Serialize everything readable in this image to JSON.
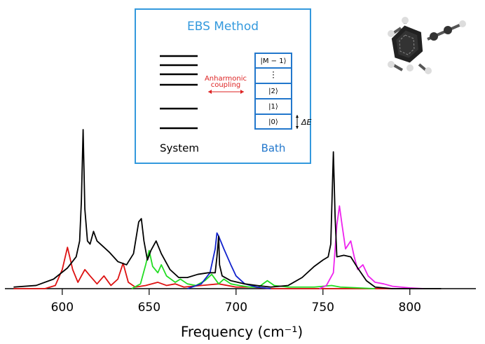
{
  "chart_data": {
    "type": "line",
    "xlabel": "Frequency (cm⁻¹)",
    "xlim": [
      567,
      838
    ],
    "ylim": [
      0,
      1.05
    ],
    "xticks": [
      600,
      650,
      700,
      750,
      800
    ],
    "series": [
      {
        "color": "#000000",
        "x": [
          572,
          585,
          595,
          603,
          608,
          610,
          611,
          612,
          613,
          614.5,
          616,
          618,
          620,
          623,
          627,
          632,
          637,
          641,
          644,
          645.5,
          647,
          649,
          651,
          654,
          657,
          662,
          667,
          672,
          678,
          684,
          688,
          689,
          690,
          690.5,
          692,
          697,
          705,
          712,
          720,
          730,
          738,
          745,
          750,
          753,
          754.5,
          756,
          757,
          758,
          762,
          766,
          770,
          775,
          780,
          790,
          818
        ],
        "values": [
          0.01,
          0.02,
          0.06,
          0.13,
          0.2,
          0.3,
          0.55,
          1.0,
          0.5,
          0.3,
          0.28,
          0.36,
          0.3,
          0.27,
          0.23,
          0.17,
          0.15,
          0.22,
          0.42,
          0.44,
          0.3,
          0.18,
          0.24,
          0.3,
          0.22,
          0.12,
          0.07,
          0.07,
          0.09,
          0.1,
          0.1,
          0.2,
          0.33,
          0.15,
          0.08,
          0.05,
          0.03,
          0.02,
          0.01,
          0.02,
          0.07,
          0.14,
          0.18,
          0.2,
          0.28,
          0.86,
          0.45,
          0.2,
          0.21,
          0.2,
          0.13,
          0.05,
          0.01,
          0,
          0
        ]
      },
      {
        "color": "#dd1111",
        "x": [
          572,
          590,
          596,
          600,
          603,
          606,
          609,
          613,
          616,
          620,
          624,
          628,
          632,
          635,
          638,
          642,
          648,
          655,
          660,
          665,
          670,
          680,
          690,
          700,
          710,
          720,
          790
        ],
        "values": [
          0,
          0,
          0.02,
          0.12,
          0.26,
          0.12,
          0.04,
          0.12,
          0.08,
          0.03,
          0.08,
          0.02,
          0.06,
          0.16,
          0.04,
          0.01,
          0.02,
          0.04,
          0.02,
          0.03,
          0.01,
          0.02,
          0.03,
          0.01,
          0.01,
          0,
          0
        ]
      },
      {
        "color": "#22dd22",
        "x": [
          640,
          645,
          648,
          650,
          652,
          655,
          657,
          660,
          665,
          668,
          672,
          677,
          682,
          686,
          690,
          693,
          697,
          702,
          708,
          713,
          718,
          722,
          730,
          745,
          755,
          760,
          780
        ],
        "values": [
          0,
          0.03,
          0.15,
          0.24,
          0.14,
          0.1,
          0.15,
          0.08,
          0.04,
          0.06,
          0.03,
          0.02,
          0.05,
          0.09,
          0.03,
          0.06,
          0.03,
          0.02,
          0.01,
          0.01,
          0.05,
          0.02,
          0.01,
          0.01,
          0.02,
          0.01,
          0
        ]
      },
      {
        "color": "#1122cc",
        "x": [
          672,
          680,
          685,
          688,
          689,
          690,
          693,
          697,
          700,
          705,
          712,
          720
        ],
        "values": [
          0,
          0.03,
          0.1,
          0.25,
          0.35,
          0.33,
          0.25,
          0.15,
          0.08,
          0.03,
          0.01,
          0
        ]
      },
      {
        "color": "#ee22ee",
        "x": [
          748,
          752,
          756,
          758,
          759.5,
          761,
          763,
          766,
          768,
          770,
          773,
          776,
          780,
          785,
          790,
          800,
          808
        ],
        "values": [
          0,
          0.02,
          0.1,
          0.4,
          0.52,
          0.4,
          0.25,
          0.3,
          0.2,
          0.12,
          0.15,
          0.08,
          0.04,
          0.03,
          0.015,
          0.005,
          0
        ]
      }
    ]
  },
  "inset": {
    "title": "EBS Method",
    "system": "System",
    "bath": "Bath",
    "coupling": [
      "Anharmonic",
      "coupling"
    ],
    "states": [
      "|M − 1⟩",
      "⋮",
      "|2⟩",
      "|1⟩",
      "|0⟩"
    ],
    "delta": "ΔE"
  }
}
